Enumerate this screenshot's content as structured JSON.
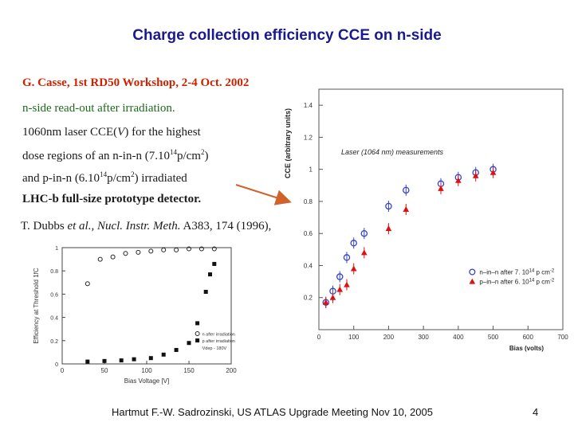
{
  "slide": {
    "title": "Charge collection efficiency CCE on n-side",
    "line1": "G. Casse, 1st RD50 Workshop, 2-4 Oct. 2002",
    "line2": "n-side read-out after irradiation.",
    "line3_a": "1060nm laser CCE(",
    "line3_b": "V",
    "line3_c": ") for the highest",
    "line4_a": "dose regions of an n-in-n (7.10",
    "line4_sup1": "14",
    "line4_b": "p/cm",
    "line4_sup2": "2",
    "line4_c": ")",
    "line5_a": "and p-in-n (6.10",
    "line5_sup1": "14",
    "line5_b": "p/cm",
    "line5_sup2": "2",
    "line5_c": ") irradiated",
    "line6": "LHC-b full-size prototype detector.",
    "ref_a": "T. Dubbs ",
    "ref_b": "et al., Nucl. Instr. Meth.",
    "ref_c": " A383, 174 (1996),",
    "footer": "Hartmut F.-W. Sadrozinski, US ATLAS Upgrade Meeting Nov 10,  2005",
    "page_number": "4"
  },
  "colors": {
    "title": "#1a1a8c",
    "red_text": "#cc2200",
    "green_text": "#1a6b1a",
    "arrow": "#d0622a",
    "nin": "#3344cc",
    "pin": "#dd1111"
  },
  "chart_data": [
    {
      "type": "scatter",
      "title": "",
      "annotation": "Laser (1064 nm) measurements",
      "xlabel": "Bias (volts)",
      "ylabel": "CCE (arbitrary units)",
      "xlim": [
        0,
        700
      ],
      "ylim": [
        0,
        1.5
      ],
      "xticks": [
        0,
        100,
        200,
        300,
        400,
        500,
        600,
        700
      ],
      "yticks": [
        0.2,
        0.4,
        0.6,
        0.8,
        1,
        1.2,
        1.4
      ],
      "legend_position": "bottom-right",
      "legend_nin_a": "n–in–n after 7. 10",
      "legend_nin_sup": "14",
      "legend_nin_b": " p cm",
      "legend_nin_sup2": "-2",
      "legend_pin_a": "p–in–n after 6. 10",
      "legend_pin_sup": "14",
      "legend_pin_b": " p cm",
      "legend_pin_sup2": "-2",
      "series": [
        {
          "marker": "circle",
          "x": [
            20,
            40,
            60,
            80,
            100,
            130,
            200,
            250,
            350,
            400,
            450,
            500
          ],
          "y": [
            0.17,
            0.24,
            0.33,
            0.45,
            0.54,
            0.6,
            0.77,
            0.87,
            0.91,
            0.95,
            0.98,
            1.0
          ]
        },
        {
          "marker": "triangle",
          "x": [
            20,
            40,
            60,
            80,
            100,
            130,
            200,
            250,
            350,
            400,
            450,
            500
          ],
          "y": [
            0.17,
            0.2,
            0.25,
            0.28,
            0.38,
            0.48,
            0.63,
            0.75,
            0.88,
            0.93,
            0.96,
            0.98
          ]
        }
      ]
    },
    {
      "type": "scatter",
      "title": "",
      "xlabel": "Bias Voltage [V]",
      "ylabel": "Efficiency at Threshold 1fC",
      "xlim": [
        0,
        200
      ],
      "ylim": [
        0,
        1
      ],
      "xticks": [
        0,
        50,
        100,
        150,
        200
      ],
      "yticks": [
        0,
        0.2,
        0.4,
        0.6,
        0.8,
        1
      ],
      "legend_position": "bottom-right",
      "legend_n": "n after irradiation",
      "legend_p": "p after irradiation",
      "legend_note": "Vdep - 180V",
      "series": [
        {
          "marker": "open-circle",
          "x": [
            30,
            45,
            60,
            75,
            90,
            105,
            120,
            135,
            150,
            165,
            180
          ],
          "y": [
            0.69,
            0.9,
            0.92,
            0.95,
            0.96,
            0.97,
            0.98,
            0.98,
            0.99,
            0.99,
            0.99
          ]
        },
        {
          "marker": "filled-square",
          "x": [
            30,
            50,
            70,
            85,
            105,
            120,
            135,
            150,
            160,
            170,
            175,
            180
          ],
          "y": [
            0.02,
            0.025,
            0.03,
            0.04,
            0.05,
            0.08,
            0.12,
            0.18,
            0.35,
            0.62,
            0.77,
            0.86
          ]
        }
      ]
    }
  ]
}
